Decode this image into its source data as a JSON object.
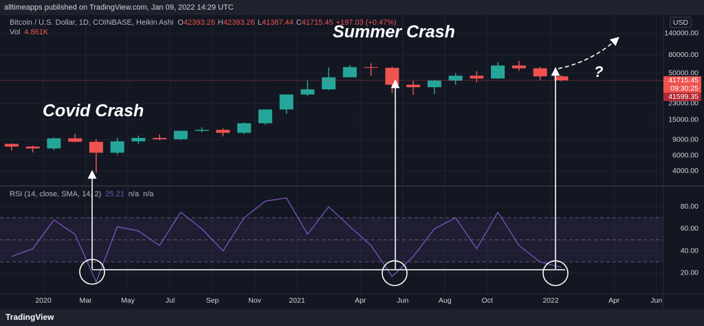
{
  "header": {
    "publisher": "alltimeapps published on TradingView.com, Jan 09, 2022 14:29 UTC",
    "brand": "TradingView"
  },
  "chart_data": [
    {
      "type": "candlestick",
      "title": "Bitcoin / U.S. Dollar, 1D, COINBASE, Heikin Ashi",
      "ohlc_legend": {
        "labels": [
          "O",
          "H",
          "L",
          "C"
        ],
        "values": [
          42393.26,
          42393.26,
          41387.44,
          41715.45
        ],
        "change": "+197.03 (+0.47%)"
      },
      "volume_label": "Vol",
      "volume_value": "4.861K",
      "currency": "USD",
      "countdown": "09:30:25",
      "second_price": 41599.35,
      "annotations": [
        "Covid Crash",
        "Summer Crash",
        "?"
      ],
      "up_color": "#26a69a",
      "down_color": "#ef5350",
      "x": [
        "2019-11",
        "2019-12",
        "2020-01",
        "2020-02",
        "2020-03",
        "2020-04",
        "2020-05",
        "2020-06",
        "2020-07",
        "2020-08",
        "2020-09",
        "2020-10",
        "2020-11",
        "2020-12",
        "2021-01",
        "2021-02",
        "2021-03",
        "2021-04",
        "2021-05",
        "2021-06",
        "2021-07",
        "2021-08",
        "2021-09",
        "2021-10",
        "2021-11",
        "2021-12",
        "2022-01"
      ],
      "open": [
        8100,
        7550,
        7200,
        9350,
        8550,
        6450,
        8650,
        9450,
        9140,
        11350,
        11650,
        10780,
        13800,
        19700,
        29000,
        33100,
        45200,
        58800,
        57700,
        37300,
        35000,
        41500,
        47100,
        43800,
        61300,
        57000,
        46300
      ],
      "high": [
        8200,
        7750,
        9550,
        10500,
        9150,
        9450,
        10050,
        10400,
        11450,
        12450,
        12100,
        14100,
        19850,
        29300,
        41950,
        58350,
        61800,
        64900,
        59500,
        41300,
        42300,
        50500,
        52900,
        67000,
        69000,
        59100,
        47900
      ],
      "low": [
        6800,
        6500,
        6900,
        8450,
        3850,
        6150,
        8100,
        8900,
        8950,
        10950,
        9850,
        10400,
        13200,
        17600,
        28100,
        32400,
        45000,
        47000,
        30000,
        28800,
        29300,
        37300,
        39600,
        43300,
        53300,
        42000,
        40500
      ],
      "close": [
        7550,
        7200,
        9350,
        8550,
        6450,
        8650,
        9450,
        9140,
        11350,
        11650,
        10780,
        13800,
        19700,
        29000,
        33100,
        45200,
        58800,
        57700,
        37300,
        35000,
        41500,
        47100,
        43800,
        61300,
        57000,
        46300,
        41715.45
      ],
      "xlim": [
        "2019-11",
        "2022-06"
      ],
      "ylim": [
        2780,
        163700
      ],
      "log_scale": true,
      "grid": true,
      "yticks": [
        {
          "value": 4000,
          "label": "4000.00"
        },
        {
          "value": 6000,
          "label": "6000.00"
        },
        {
          "value": 9000,
          "label": "9000.00"
        },
        {
          "value": 15000,
          "label": "15000.00"
        },
        {
          "value": 23000,
          "label": "23000.00"
        },
        {
          "value": 50000,
          "label": "50000.00"
        },
        {
          "value": 80000,
          "label": "80000.00"
        },
        {
          "value": 140000,
          "label": "140000.00"
        }
      ]
    },
    {
      "type": "line",
      "title": "RSI (14, close, SMA, 14, 2)",
      "na_labels": [
        "n/a",
        "n/a"
      ],
      "color": "#7e57c2",
      "x": [
        "2019-11",
        "2019-12",
        "2020-01",
        "2020-02",
        "2020-03",
        "2020-04",
        "2020-05",
        "2020-06",
        "2020-07",
        "2020-08",
        "2020-09",
        "2020-10",
        "2020-11",
        "2020-12",
        "2021-01",
        "2021-02",
        "2021-03",
        "2021-04",
        "2021-05",
        "2021-06",
        "2021-07",
        "2021-08",
        "2021-09",
        "2021-10",
        "2021-11",
        "2021-12",
        "2022-01"
      ],
      "values": [
        35,
        42,
        68,
        55,
        12,
        62,
        58,
        45,
        75,
        60,
        40,
        70,
        85,
        88,
        55,
        80,
        62,
        45,
        17,
        35,
        60,
        70,
        42,
        75,
        45,
        30,
        25.21
      ],
      "levels": [
        70,
        50,
        30
      ],
      "xlim": [
        "2019-11",
        "2022-06"
      ],
      "ylim": [
        1.3,
        98.1
      ],
      "grid": true,
      "yticks": [
        {
          "value": 20,
          "label": "20.00"
        },
        {
          "value": 40,
          "label": "40.00"
        },
        {
          "value": 60,
          "label": "60.00"
        },
        {
          "value": 80,
          "label": "80.00"
        }
      ],
      "xticks": [
        {
          "value": "2020-01",
          "label": "2020"
        },
        {
          "value": "2020-03",
          "label": "Mar"
        },
        {
          "value": "2020-05",
          "label": "May"
        },
        {
          "value": "2020-07",
          "label": "Jul"
        },
        {
          "value": "2020-09",
          "label": "Sep"
        },
        {
          "value": "2020-11",
          "label": "Nov"
        },
        {
          "value": "2021-01",
          "label": "2021"
        },
        {
          "value": "2021-04",
          "label": "Apr"
        },
        {
          "value": "2021-06",
          "label": "Jun"
        },
        {
          "value": "2021-08",
          "label": "Aug"
        },
        {
          "value": "2021-10",
          "label": "Oct"
        },
        {
          "value": "2022-01",
          "label": "2022"
        },
        {
          "value": "2022-04",
          "label": "Apr"
        },
        {
          "value": "2022-06",
          "label": "Jun"
        }
      ]
    }
  ]
}
